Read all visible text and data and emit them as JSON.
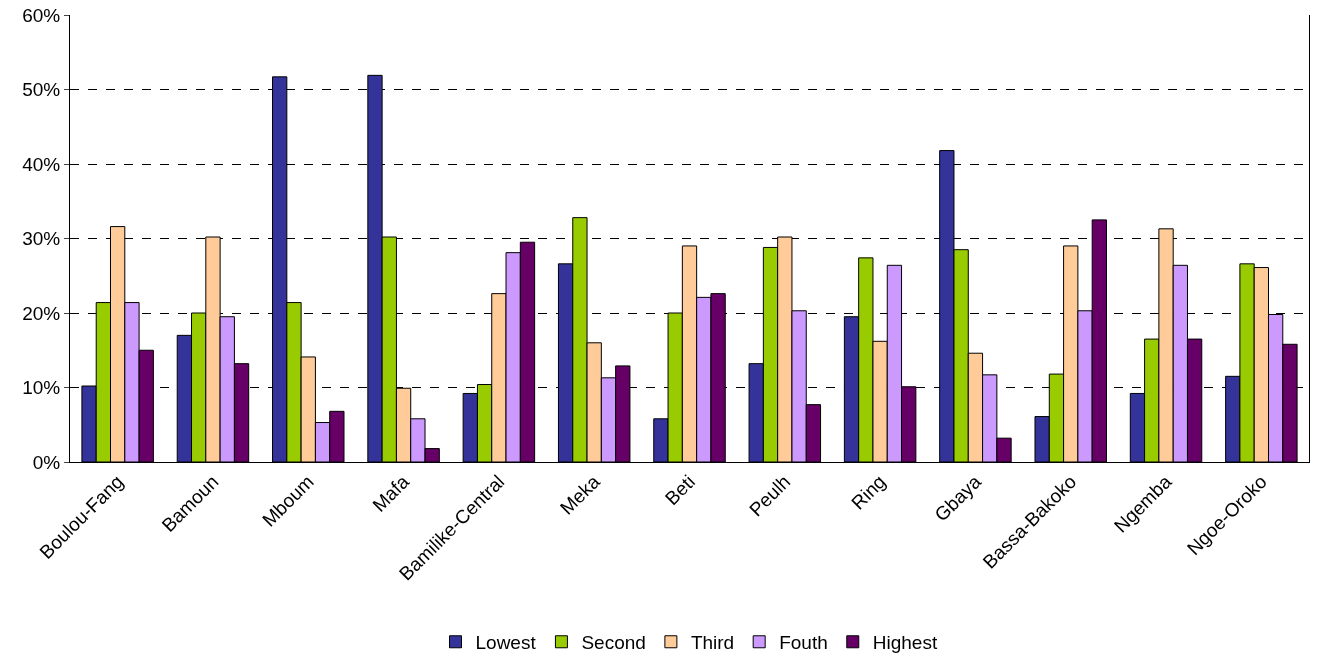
{
  "chart_data": {
    "type": "bar",
    "categories": [
      "Boulou-Fang",
      "Bamoun",
      "Mboum",
      "Mafa",
      "Bamilike-Central",
      "Meka",
      "Beti",
      "Peulh",
      "Ring",
      "Gbaya",
      "Bassa-Bakoko",
      "Ngemba",
      "Ngoe-Oroko"
    ],
    "series": [
      {
        "name": "Lowest",
        "color": "#333399",
        "values": [
          10.2,
          17.0,
          51.7,
          51.9,
          9.2,
          26.6,
          5.8,
          13.2,
          19.5,
          41.8,
          6.1,
          9.2,
          11.5
        ]
      },
      {
        "name": "Second",
        "color": "#99cc00",
        "values": [
          21.4,
          20.0,
          21.4,
          30.2,
          10.4,
          32.8,
          20.0,
          28.8,
          27.4,
          28.5,
          11.8,
          16.5,
          26.6
        ]
      },
      {
        "name": "Third",
        "color": "#ffcc99",
        "values": [
          31.6,
          30.2,
          14.1,
          9.9,
          22.6,
          16.0,
          29.0,
          30.2,
          16.2,
          14.6,
          29.0,
          31.3,
          26.1
        ]
      },
      {
        "name": "Fouth",
        "color": "#cc99ff",
        "values": [
          21.4,
          19.5,
          5.3,
          5.8,
          28.1,
          11.3,
          22.1,
          20.3,
          26.4,
          11.7,
          20.3,
          26.4,
          19.8
        ]
      },
      {
        "name": "Highest",
        "color": "#660066",
        "values": [
          15.0,
          13.2,
          6.8,
          1.8,
          29.5,
          12.9,
          22.6,
          7.7,
          10.1,
          3.2,
          32.5,
          16.5,
          15.8
        ]
      }
    ],
    "ylim": [
      0,
      60
    ],
    "yticks": [
      {
        "value": 0,
        "label": "0%"
      },
      {
        "value": 10,
        "label": "10%"
      },
      {
        "value": 20,
        "label": "20%"
      },
      {
        "value": 30,
        "label": "30%"
      },
      {
        "value": 40,
        "label": "40%"
      },
      {
        "value": 50,
        "label": "50%"
      },
      {
        "value": 60,
        "label": "60%"
      }
    ],
    "grid": "y",
    "legend": "bottom"
  }
}
